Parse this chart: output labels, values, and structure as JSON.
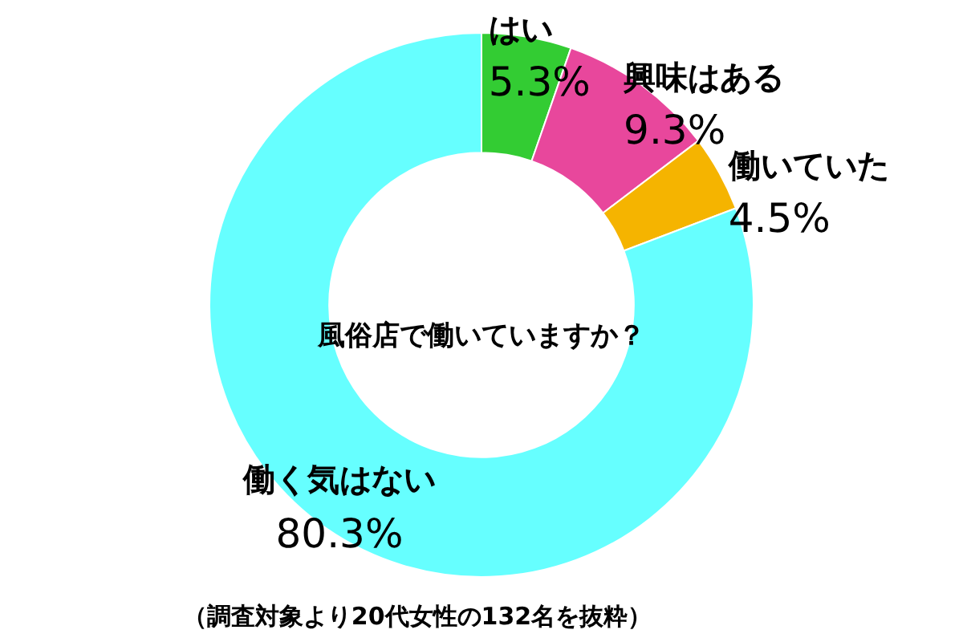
{
  "chart_data": {
    "type": "donut",
    "title": "風俗店で働いていますか？",
    "categories": [
      "はい",
      "興味はある",
      "働いていた",
      "働く気はない"
    ],
    "values": [
      5.3,
      9.3,
      4.5,
      80.3
    ],
    "value_labels": [
      "5.3%",
      "9.3%",
      "4.5%",
      "80.3%"
    ],
    "colors": [
      "#33cc33",
      "#e8479c",
      "#f5b400",
      "#66ffff"
    ],
    "legend": false,
    "annotations": [
      "（調査対象より20代女性の132名を抜粋）"
    ]
  }
}
